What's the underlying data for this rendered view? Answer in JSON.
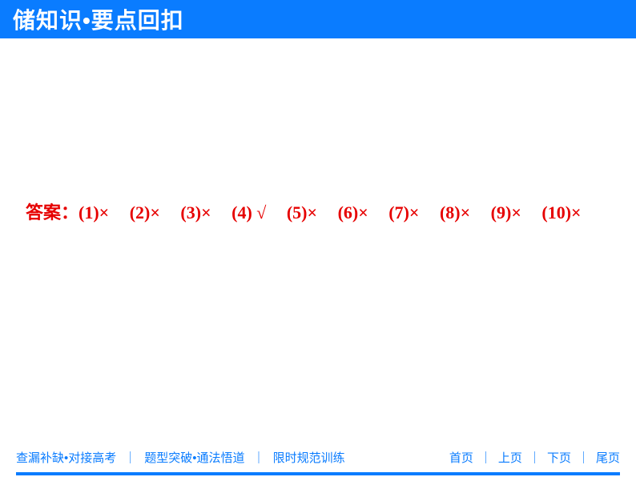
{
  "header": {
    "title": "储知识•要点回扣",
    "background_color": "#0a7cff",
    "text_color": "#ffffff"
  },
  "content": {
    "answer_label": "答案：",
    "text_color": "#e60000",
    "answers": [
      {
        "num": "(1)",
        "mark": "×"
      },
      {
        "num": "(2)",
        "mark": "×"
      },
      {
        "num": "(3)",
        "mark": "×"
      },
      {
        "num": "(4)",
        "mark": "√"
      },
      {
        "num": "(5)",
        "mark": "×"
      },
      {
        "num": "(6)",
        "mark": "×"
      },
      {
        "num": "(7)",
        "mark": "×"
      },
      {
        "num": "(8)",
        "mark": "×"
      },
      {
        "num": "(9)",
        "mark": "×"
      },
      {
        "num": "(10)",
        "mark": "×"
      }
    ]
  },
  "footer": {
    "left_items": [
      "查漏补缺•对接高考",
      "题型突破•通法悟道",
      "限时规范训练"
    ],
    "right_items": [
      "首页",
      "上页",
      "下页",
      "尾页"
    ],
    "separator": "｜",
    "text_color": "#0a7cff"
  }
}
